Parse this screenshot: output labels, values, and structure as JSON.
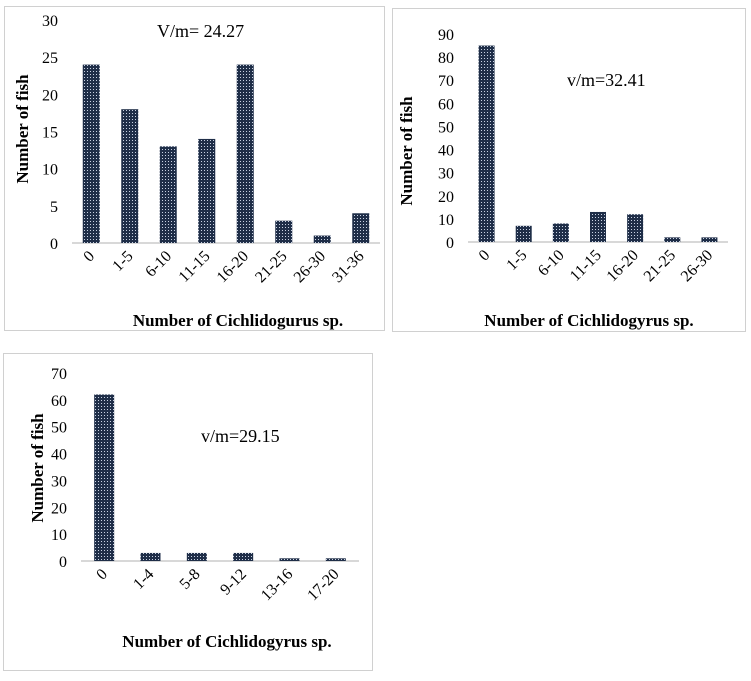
{
  "chart_data": [
    {
      "type": "bar",
      "categories": [
        "0",
        "1-5",
        "6-10",
        "11-15",
        "16-20",
        "21-25",
        "26-30",
        "31-36"
      ],
      "values": [
        24,
        18,
        13,
        14,
        24,
        3,
        1,
        4
      ],
      "ylabel": "Number of fish",
      "xlabel": "Number of Cichlidogurus sp.",
      "ylim": [
        0,
        30
      ],
      "yticks": [
        0,
        5,
        10,
        15,
        20,
        25,
        30
      ],
      "annotation": "V/m= 24.27",
      "grid": false,
      "bar_color": "#1f2e48"
    },
    {
      "type": "bar",
      "categories": [
        "0",
        "1-5",
        "6-10",
        "11-15",
        "16-20",
        "21-25",
        "26-30"
      ],
      "values": [
        85,
        7,
        8,
        13,
        12,
        2,
        2
      ],
      "ylabel": "Number of fish",
      "xlabel": "Number of Cichlidogyrus sp.",
      "ylim": [
        0,
        90
      ],
      "yticks": [
        0,
        10,
        20,
        30,
        40,
        50,
        60,
        70,
        80,
        90
      ],
      "annotation": "v/m=32.41",
      "grid": false,
      "bar_color": "#1f2e48"
    },
    {
      "type": "bar",
      "categories": [
        "0",
        "1-4",
        "5-8",
        "9-12",
        "13-16",
        "17-20"
      ],
      "values": [
        62,
        3,
        3,
        3,
        1,
        1
      ],
      "ylabel": "Number of fish",
      "xlabel": "Number of Cichlidogyrus sp.",
      "ylim": [
        0,
        70
      ],
      "yticks": [
        0,
        10,
        20,
        30,
        40,
        50,
        60,
        70
      ],
      "annotation": "v/m=29.15",
      "grid": false,
      "bar_color": "#1f2e48"
    }
  ]
}
